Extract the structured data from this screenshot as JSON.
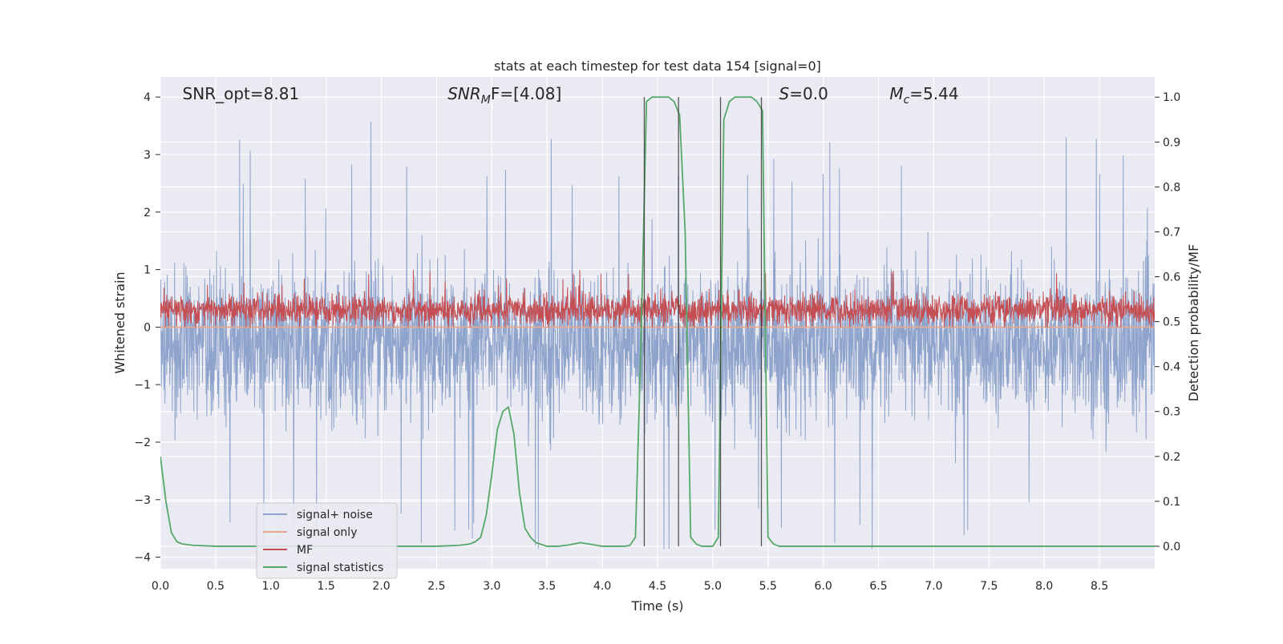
{
  "chart_data": {
    "type": "line",
    "title": "stats at each timestep for test data 154 [signal=0]",
    "xlabel": "Time (s)",
    "ylabel_left": "Whitened strain",
    "ylabel_right": "Detection probability/MF",
    "xlim": [
      0.0,
      9.0
    ],
    "ylim_left": [
      -4.2,
      4.35
    ],
    "ylim_right": [
      -0.05,
      1.045
    ],
    "x_ticks": [
      "0.0",
      "0.5",
      "1.0",
      "1.5",
      "2.0",
      "2.5",
      "3.0",
      "3.5",
      "4.0",
      "4.5",
      "5.0",
      "5.5",
      "6.0",
      "6.5",
      "7.0",
      "7.5",
      "8.0",
      "8.5"
    ],
    "x_tick_values": [
      0.0,
      0.5,
      1.0,
      1.5,
      2.0,
      2.5,
      3.0,
      3.5,
      4.0,
      4.5,
      5.0,
      5.5,
      6.0,
      6.5,
      7.0,
      7.5,
      8.0,
      8.5
    ],
    "y_ticks_left": [
      "4",
      "3",
      "2",
      "1",
      "0",
      "−1",
      "−2",
      "−3",
      "−4"
    ],
    "y_tick_values_left": [
      4,
      3,
      2,
      1,
      0,
      -1,
      -2,
      -3,
      -4
    ],
    "y_ticks_right": [
      "1.0",
      "0.9",
      "0.8",
      "0.7",
      "0.6",
      "0.5",
      "0.4",
      "0.3",
      "0.2",
      "0.1",
      "0.0"
    ],
    "y_tick_values_right": [
      1.0,
      0.9,
      0.8,
      0.7,
      0.6,
      0.5,
      0.4,
      0.3,
      0.2,
      0.1,
      0.0
    ],
    "grid": true,
    "legend_placement": "lower-left",
    "annotations": [
      {
        "prefix": "SNR_opt=8.81",
        "sub": "",
        "suffix": "",
        "x": 0.2
      },
      {
        "prefix": "SNR",
        "sub": "M",
        "suffix": "F=[4.08]",
        "x": 2.6,
        "italic_prefix": true
      },
      {
        "prefix": "S",
        "sub": "",
        "suffix": "=0.0",
        "x": 5.6,
        "italic_prefix": true
      },
      {
        "prefix": "M",
        "sub": "c",
        "suffix": "=5.44",
        "x": 6.6,
        "italic_prefix": true
      }
    ],
    "vertical_lines_x": [
      4.38,
      4.69,
      5.07,
      5.44
    ],
    "series": [
      {
        "name": "signal+ noise",
        "axis": "left",
        "color": "#8fa4cc",
        "center": -0.3,
        "noise_std": 0.62,
        "range": [
          -3.85,
          3.6
        ]
      },
      {
        "name": "signal only",
        "axis": "left",
        "color": "#e9a88b",
        "x": [
          0.0,
          9.0
        ],
        "y": [
          0.0,
          0.0
        ]
      },
      {
        "name": "MF",
        "axis": "left",
        "color": "#c44e52",
        "center": 0.3,
        "noise_std": 0.13,
        "range": [
          0.0,
          1.0
        ]
      },
      {
        "name": "signal statistics",
        "axis": "right",
        "color": "#55a868",
        "x": [
          0.0,
          0.05,
          0.1,
          0.15,
          0.2,
          0.3,
          0.5,
          1.0,
          1.5,
          2.0,
          2.5,
          2.7,
          2.8,
          2.85,
          2.9,
          2.95,
          3.0,
          3.05,
          3.1,
          3.15,
          3.2,
          3.25,
          3.3,
          3.35,
          3.4,
          3.45,
          3.5,
          3.6,
          3.7,
          3.8,
          3.88,
          3.95,
          4.0,
          4.1,
          4.2,
          4.25,
          4.3,
          4.35,
          4.4,
          4.45,
          4.5,
          4.55,
          4.6,
          4.65,
          4.7,
          4.75,
          4.8,
          4.85,
          4.9,
          4.95,
          5.0,
          5.05,
          5.1,
          5.15,
          5.2,
          5.25,
          5.3,
          5.35,
          5.4,
          5.45,
          5.5,
          5.55,
          5.6,
          5.7,
          6.0,
          7.0,
          8.0,
          9.0
        ],
        "y": [
          0.2,
          0.1,
          0.03,
          0.01,
          0.005,
          0.002,
          0.0,
          0.0,
          0.0,
          0.0,
          0.0,
          0.002,
          0.005,
          0.01,
          0.02,
          0.07,
          0.16,
          0.26,
          0.3,
          0.31,
          0.25,
          0.12,
          0.04,
          0.02,
          0.008,
          0.004,
          0.0,
          0.0,
          0.003,
          0.008,
          0.005,
          0.002,
          0.0,
          0.0,
          0.0,
          0.002,
          0.02,
          0.45,
          0.99,
          1.0,
          1.0,
          1.0,
          1.0,
          0.99,
          0.96,
          0.7,
          0.02,
          0.005,
          0.0,
          0.0,
          0.0,
          0.02,
          0.95,
          0.99,
          1.0,
          1.0,
          1.0,
          1.0,
          0.99,
          0.97,
          0.02,
          0.005,
          0.0,
          0.0,
          0.0,
          0.0,
          0.0,
          0.0
        ]
      }
    ]
  }
}
